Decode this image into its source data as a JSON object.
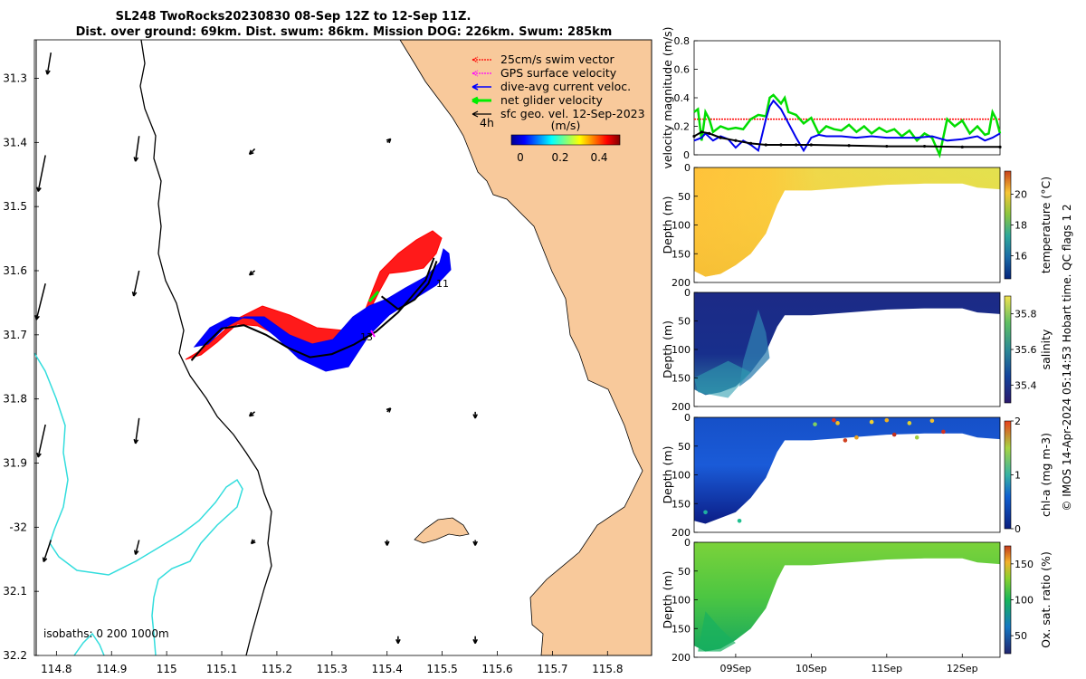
{
  "colors": {
    "land": "#f8c99b",
    "isobath0": "#000000",
    "isobath200": "#000000",
    "isobath1000": "#33dddd",
    "swim": "#ff0000",
    "gps": "#ff00ff",
    "diveavg": "#0000ff",
    "net": "#00ee00",
    "geo": "#000000"
  },
  "chart_data": [
    {
      "type": "map",
      "title_line1": "SL248 TwoRocks20230830 08-Sep 12Z to 12-Sep 11Z.",
      "title_line2": "Dist. over ground: 69km. Dist. swum: 86km. Mission DOG: 226km. Swum: 285km",
      "lon_ticks": [
        "114.8",
        "114.9",
        "115",
        "115.1",
        "115.2",
        "115.3",
        "115.4",
        "115.5",
        "115.6",
        "115.7",
        "115.8"
      ],
      "lat_ticks": [
        "31.3",
        "31.4",
        "31.5",
        "31.6",
        "31.7",
        "31.8",
        "31.9",
        "-32",
        "32.1",
        "32.2"
      ],
      "xlim": [
        114.76,
        115.88
      ],
      "ylim": [
        -32.2,
        -31.24
      ],
      "legend": [
        "25cm/s swim vector",
        "GPS surface velocity",
        "dive-avg current veloc.",
        "net glider velocity",
        "sfc geo. vel. 12-Sep-2023"
      ],
      "legend_arrow_label": "4h",
      "colorbar_title": "(m/s)",
      "colorbar_ticks": [
        "0",
        "0.2",
        "0.4"
      ],
      "colorbar_range": [
        -0.05,
        0.5
      ],
      "isobath_text": "isobaths: 0   200  1000m",
      "day_labels": [
        "11",
        "13"
      ],
      "track": [
        [
          115.045,
          -31.74
        ],
        [
          115.07,
          -31.715
        ],
        [
          115.1,
          -31.69
        ],
        [
          115.14,
          -31.685
        ],
        [
          115.18,
          -31.7
        ],
        [
          115.22,
          -31.72
        ],
        [
          115.26,
          -31.735
        ],
        [
          115.3,
          -31.73
        ],
        [
          115.34,
          -31.715
        ],
        [
          115.38,
          -31.695
        ],
        [
          115.42,
          -31.665
        ],
        [
          115.45,
          -31.635
        ],
        [
          115.47,
          -31.615
        ],
        [
          115.485,
          -31.58
        ]
      ],
      "track_return": [
        [
          115.49,
          -31.585
        ],
        [
          115.475,
          -31.62
        ],
        [
          115.45,
          -31.645
        ],
        [
          115.42,
          -31.66
        ],
        [
          115.39,
          -31.64
        ]
      ],
      "geo_arrows": [
        [
          114.79,
          -31.26,
          -0.1,
          0.6
        ],
        [
          114.78,
          -31.42,
          -0.2,
          1
        ],
        [
          114.78,
          -31.62,
          -0.25,
          1
        ],
        [
          114.78,
          -31.84,
          -0.2,
          0.9
        ],
        [
          114.79,
          -32.02,
          -0.2,
          0.6
        ],
        [
          114.95,
          -31.39,
          -0.1,
          0.7
        ],
        [
          114.95,
          -31.6,
          -0.15,
          0.7
        ],
        [
          114.95,
          -31.83,
          -0.1,
          0.7
        ],
        [
          114.95,
          -32.02,
          -0.1,
          0.4
        ],
        [
          115.16,
          -31.41,
          -0.15,
          0.15
        ],
        [
          115.16,
          -31.6,
          -0.15,
          0.12
        ],
        [
          115.16,
          -31.82,
          -0.15,
          0.12
        ],
        [
          115.16,
          -32.02,
          -0.1,
          0.1
        ],
        [
          115.4,
          -31.4,
          0.1,
          -0.1
        ],
        [
          115.4,
          -31.82,
          0.1,
          -0.1
        ],
        [
          115.4,
          -32.02,
          0,
          0.15
        ],
        [
          115.42,
          -32.17,
          0,
          0.2
        ],
        [
          115.56,
          -31.82,
          0,
          0.18
        ],
        [
          115.56,
          -32.02,
          0,
          0.15
        ],
        [
          115.56,
          -32.17,
          0,
          0.2
        ]
      ]
    },
    {
      "type": "line",
      "ylabel": "velocity magnitude (m/s)",
      "ylim": [
        0,
        0.8
      ],
      "yticks": [
        "0",
        "0.2",
        "0.4",
        "0.6",
        "0.8"
      ],
      "xlim": [
        8.45,
        12.5
      ],
      "series": [
        {
          "name": "swim",
          "color": "#ff0000",
          "x": [
            8.45,
            12.5
          ],
          "y": [
            0.25,
            0.25
          ]
        },
        {
          "name": "net",
          "color": "#00dd00",
          "x": [
            8.45,
            8.5,
            8.55,
            8.6,
            8.65,
            8.7,
            8.8,
            8.9,
            9.0,
            9.1,
            9.2,
            9.3,
            9.4,
            9.45,
            9.5,
            9.6,
            9.65,
            9.7,
            9.8,
            9.9,
            10.0,
            10.1,
            10.2,
            10.3,
            10.4,
            10.5,
            10.6,
            10.7,
            10.8,
            10.9,
            11.0,
            11.1,
            11.2,
            11.3,
            11.4,
            11.5,
            11.6,
            11.7,
            11.8,
            11.9,
            12.0,
            12.1,
            12.2,
            12.3,
            12.35,
            12.4,
            12.45,
            12.5
          ],
          "y": [
            0.3,
            0.32,
            0.1,
            0.3,
            0.25,
            0.16,
            0.2,
            0.18,
            0.19,
            0.18,
            0.25,
            0.28,
            0.27,
            0.4,
            0.42,
            0.36,
            0.4,
            0.3,
            0.28,
            0.22,
            0.26,
            0.15,
            0.2,
            0.18,
            0.17,
            0.21,
            0.16,
            0.2,
            0.15,
            0.19,
            0.16,
            0.18,
            0.13,
            0.17,
            0.1,
            0.15,
            0.12,
            0.0,
            0.25,
            0.2,
            0.24,
            0.15,
            0.2,
            0.14,
            0.15,
            0.3,
            0.25,
            0.15
          ]
        },
        {
          "name": "dive-avg",
          "color": "#0000ee",
          "x": [
            8.45,
            8.55,
            8.6,
            8.7,
            8.8,
            8.9,
            9.0,
            9.1,
            9.2,
            9.3,
            9.4,
            9.45,
            9.5,
            9.6,
            9.7,
            9.8,
            9.9,
            10.0,
            10.1,
            10.2,
            10.4,
            10.6,
            10.8,
            11.0,
            11.2,
            11.4,
            11.6,
            11.8,
            12.0,
            12.2,
            12.3,
            12.4,
            12.5
          ],
          "y": [
            0.1,
            0.12,
            0.15,
            0.1,
            0.13,
            0.11,
            0.05,
            0.1,
            0.07,
            0.03,
            0.25,
            0.34,
            0.38,
            0.32,
            0.22,
            0.12,
            0.03,
            0.12,
            0.14,
            0.13,
            0.13,
            0.12,
            0.13,
            0.12,
            0.12,
            0.12,
            0.13,
            0.1,
            0.11,
            0.13,
            0.1,
            0.12,
            0.15
          ]
        },
        {
          "name": "geo",
          "color": "#000000",
          "x": [
            8.45,
            8.55,
            8.65,
            8.8,
            9.0,
            9.2,
            9.4,
            9.6,
            9.8,
            10.0,
            10.5,
            11.0,
            11.5,
            12.0,
            12.5
          ],
          "y": [
            0.13,
            0.16,
            0.15,
            0.12,
            0.1,
            0.08,
            0.07,
            0.07,
            0.07,
            0.07,
            0.065,
            0.06,
            0.06,
            0.055,
            0.055
          ]
        }
      ]
    },
    {
      "type": "heatmap",
      "ylabel": "Depth (m)",
      "yticks": [
        "0",
        "50",
        "100",
        "150",
        "200"
      ],
      "ylim": [
        0,
        200
      ],
      "colorbar_label": "temperature (°C)",
      "colorbar_ticks": [
        "16",
        "18",
        "20"
      ],
      "colorbar_range": [
        14.5,
        21.5
      ],
      "bottom_depth": [
        [
          8.45,
          180
        ],
        [
          8.6,
          190
        ],
        [
          8.8,
          185
        ],
        [
          9.0,
          170
        ],
        [
          9.2,
          150
        ],
        [
          9.4,
          115
        ],
        [
          9.55,
          65
        ],
        [
          9.65,
          40
        ],
        [
          10.0,
          40
        ],
        [
          10.5,
          35
        ],
        [
          11.0,
          30
        ],
        [
          11.5,
          28
        ],
        [
          12.0,
          28
        ],
        [
          12.2,
          35
        ],
        [
          12.5,
          38
        ]
      ],
      "surface_color": "#ffc933"
    },
    {
      "type": "heatmap",
      "ylabel": "Depth (m)",
      "yticks": [
        "0",
        "50",
        "100",
        "150",
        "200"
      ],
      "ylim": [
        0,
        200
      ],
      "colorbar_label": "salinity",
      "colorbar_ticks": [
        "35.4",
        "35.6",
        "35.8"
      ],
      "colorbar_range": [
        35.3,
        35.9
      ],
      "bottom_depth": [
        [
          8.45,
          170
        ],
        [
          8.6,
          180
        ],
        [
          8.8,
          175
        ],
        [
          9.0,
          165
        ],
        [
          9.2,
          140
        ],
        [
          9.4,
          105
        ],
        [
          9.55,
          60
        ],
        [
          9.65,
          40
        ],
        [
          10.0,
          40
        ],
        [
          10.5,
          35
        ],
        [
          11.0,
          30
        ],
        [
          11.5,
          28
        ],
        [
          12.0,
          28
        ],
        [
          12.2,
          35
        ],
        [
          12.5,
          38
        ]
      ]
    },
    {
      "type": "heatmap",
      "ylabel": "Depth (m)",
      "yticks": [
        "0",
        "50",
        "100",
        "150",
        "200"
      ],
      "ylim": [
        0,
        200
      ],
      "colorbar_label": "chl-a (mg m-3)",
      "colorbar_ticks": [
        "0",
        "1",
        "2"
      ],
      "colorbar_range": [
        0,
        2
      ],
      "bottom_depth": [
        [
          8.45,
          180
        ],
        [
          8.6,
          185
        ],
        [
          8.8,
          175
        ],
        [
          9.0,
          165
        ],
        [
          9.2,
          140
        ],
        [
          9.4,
          105
        ],
        [
          9.55,
          60
        ],
        [
          9.65,
          40
        ],
        [
          10.0,
          40
        ],
        [
          10.5,
          35
        ],
        [
          11.0,
          30
        ],
        [
          11.5,
          28
        ],
        [
          12.0,
          28
        ],
        [
          12.2,
          35
        ],
        [
          12.5,
          38
        ]
      ]
    },
    {
      "type": "heatmap",
      "ylabel": "Depth (m)",
      "yticks": [
        "0",
        "50",
        "100",
        "150",
        "200"
      ],
      "ylim": [
        0,
        200
      ],
      "xlabels": [
        "09Sep",
        "10Sep",
        "11Sep",
        "12Sep"
      ],
      "xticks": [
        9,
        10,
        11,
        12
      ],
      "colorbar_label": "Ox. sat. ratio (%)",
      "colorbar_ticks": [
        "50",
        "100",
        "150"
      ],
      "colorbar_range": [
        25,
        175
      ],
      "bottom_depth": [
        [
          8.45,
          180
        ],
        [
          8.6,
          190
        ],
        [
          8.8,
          185
        ],
        [
          9.0,
          170
        ],
        [
          9.2,
          150
        ],
        [
          9.4,
          115
        ],
        [
          9.55,
          65
        ],
        [
          9.65,
          40
        ],
        [
          10.0,
          40
        ],
        [
          10.5,
          35
        ],
        [
          11.0,
          30
        ],
        [
          11.5,
          28
        ],
        [
          12.0,
          28
        ],
        [
          12.2,
          35
        ],
        [
          12.5,
          38
        ]
      ]
    }
  ],
  "footer_note": "© IMOS 14-Apr-2024 05:14:53 Hobart time. QC flags 1  2"
}
